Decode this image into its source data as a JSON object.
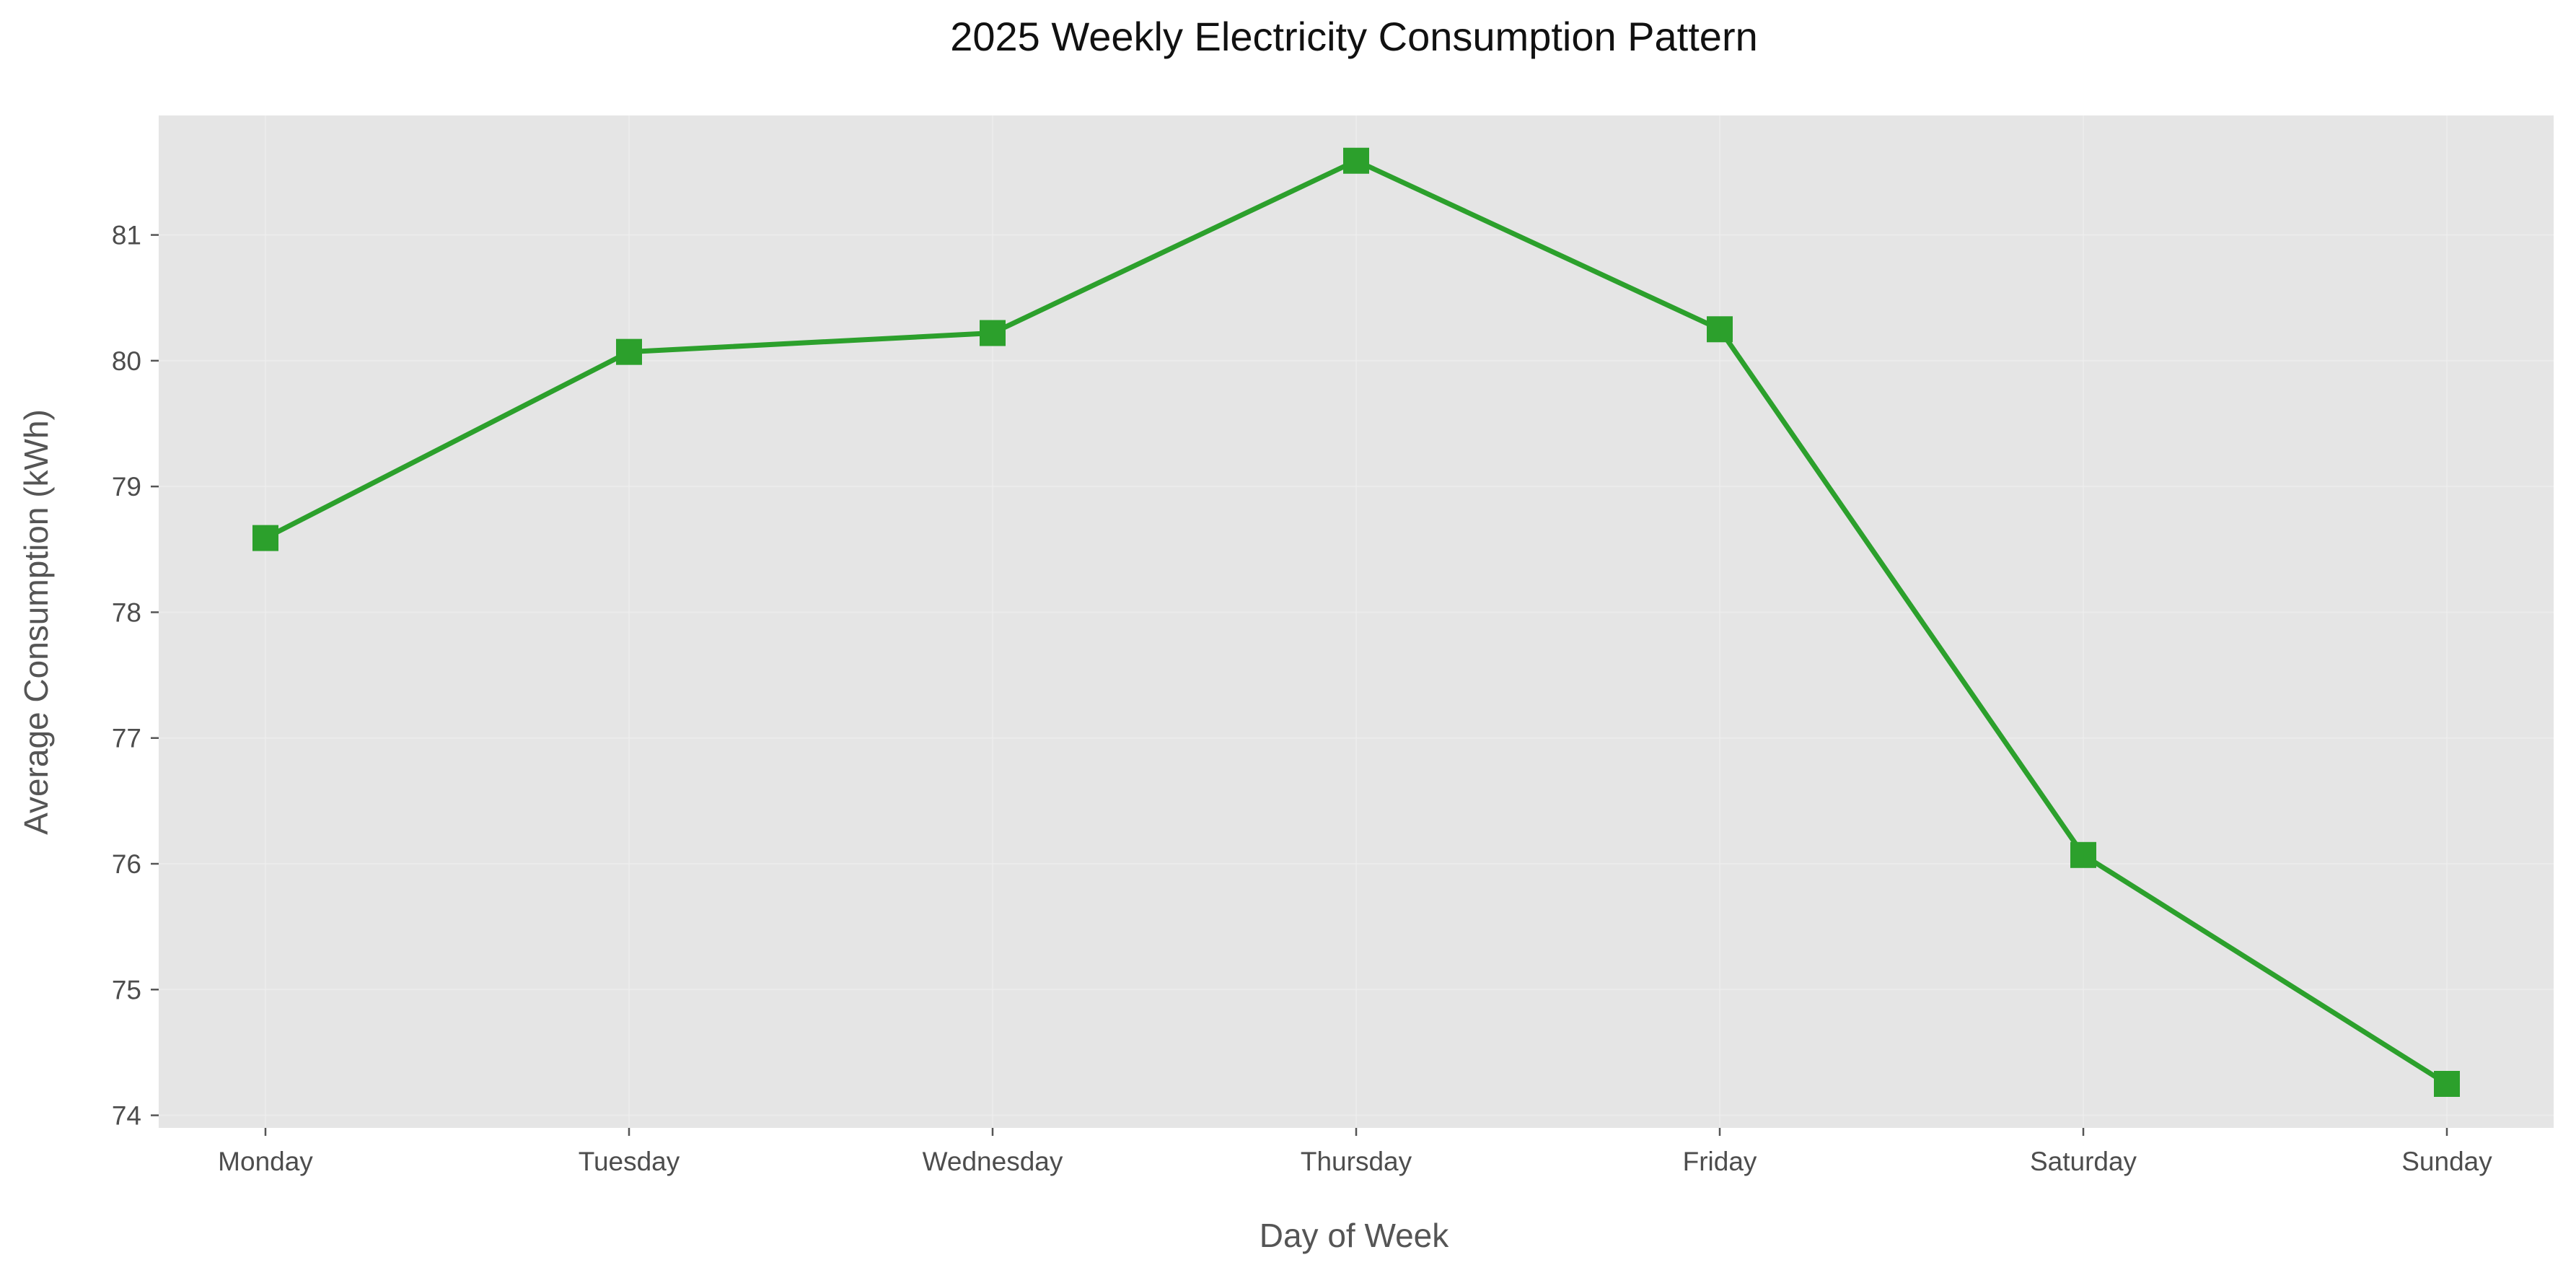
{
  "chart_data": {
    "type": "line",
    "title": "2025 Weekly Electricity Consumption Pattern",
    "xlabel": "Day of Week",
    "ylabel": "Average Consumption (kWh)",
    "categories": [
      "Monday",
      "Tuesday",
      "Wednesday",
      "Thursday",
      "Friday",
      "Saturday",
      "Sunday"
    ],
    "series": [
      {
        "values": [
          78.59,
          80.07,
          80.22,
          81.59,
          80.25,
          76.07,
          74.25
        ],
        "color": "#2ca02c",
        "marker": "square"
      }
    ],
    "ylim": [
      73.9,
      81.95
    ],
    "yticks": [
      74,
      75,
      76,
      77,
      78,
      79,
      80,
      81
    ],
    "grid": true,
    "background": "#e5e5e5",
    "legend": "none"
  }
}
